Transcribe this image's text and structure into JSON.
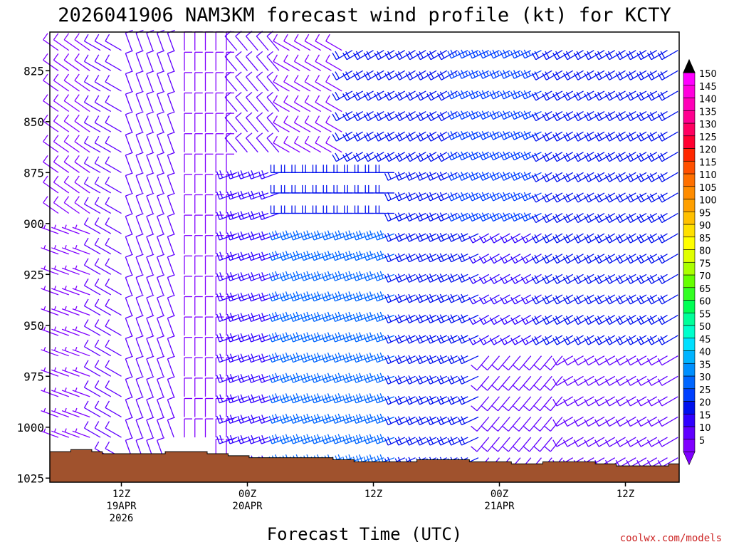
{
  "chart_data": {
    "type": "wind_barb_profile",
    "title": "2026041906 NAM3KM forecast wind profile (kt) for KCTY",
    "xlabel": "Forecast Time (UTC)",
    "ylabel": "",
    "units": "kt",
    "ylim": [
      1027,
      806
    ],
    "y_ticks": [
      825,
      850,
      875,
      900,
      925,
      950,
      975,
      1000,
      1025
    ],
    "y_tick_labels": [
      "825",
      "850",
      "875",
      "900",
      "925",
      "950",
      "975",
      "1000",
      "1025"
    ],
    "forecast_hours": 60,
    "x_ticks": [
      {
        "hour": 6,
        "labels": [
          "12Z",
          "19APR",
          "2026"
        ]
      },
      {
        "hour": 18,
        "labels": [
          "00Z",
          "20APR"
        ]
      },
      {
        "hour": 30,
        "labels": [
          "12Z"
        ]
      },
      {
        "hour": 42,
        "labels": [
          "00Z",
          "21APR"
        ]
      },
      {
        "hour": 54,
        "labels": [
          "12Z"
        ]
      }
    ],
    "levels_hpa": [
      815,
      825,
      835,
      845,
      855,
      865,
      875,
      885,
      895,
      905,
      915,
      925,
      935,
      945,
      955,
      965,
      975,
      985,
      995,
      1005,
      1015
    ],
    "surface_pressure_hpa": [
      1012,
      1012,
      1011,
      1011,
      1012,
      1013,
      1013,
      1013,
      1013,
      1013,
      1013,
      1012,
      1012,
      1012,
      1012,
      1013,
      1013,
      1014,
      1014,
      1015,
      1015,
      1015,
      1015,
      1015,
      1015,
      1015,
      1015,
      1016,
      1016,
      1017,
      1017,
      1017,
      1017,
      1017,
      1017,
      1016,
      1016,
      1016,
      1016,
      1016,
      1017,
      1017,
      1017,
      1017,
      1018,
      1018,
      1018,
      1017,
      1017,
      1017,
      1017,
      1017,
      1018,
      1018,
      1019,
      1019,
      1019,
      1019,
      1019,
      1018
    ],
    "barb_direction_note": "direction from which the wind blows, degrees",
    "colorbar": {
      "levels": [
        5,
        10,
        15,
        20,
        25,
        30,
        35,
        40,
        45,
        50,
        55,
        60,
        65,
        70,
        75,
        80,
        85,
        90,
        95,
        100,
        105,
        110,
        115,
        120,
        125,
        130,
        135,
        140,
        145,
        150
      ],
      "labels": [
        "5",
        "10",
        "15",
        "20",
        "25",
        "30",
        "35",
        "40",
        "45",
        "50",
        "55",
        "60",
        "65",
        "70",
        "75",
        "80",
        "85",
        "90",
        "95",
        "100",
        "105",
        "110",
        "115",
        "120",
        "125",
        "130",
        "135",
        "140",
        "145",
        "150"
      ],
      "colors": [
        "#8000ff",
        "#6000ff",
        "#3000ff",
        "#0010ee",
        "#0040ff",
        "#0066ff",
        "#0090ff",
        "#00b4ff",
        "#00e0ff",
        "#00ffcc",
        "#00ff99",
        "#00ff55",
        "#33ff22",
        "#66ff00",
        "#aaff00",
        "#e0ff00",
        "#ffff00",
        "#ffe000",
        "#ffc000",
        "#ffa000",
        "#ff8c00",
        "#ff7000",
        "#ff5000",
        "#ff2800",
        "#ff0030",
        "#ff0060",
        "#ff0090",
        "#ff00b8",
        "#ff00dd",
        "#ff00ff"
      ]
    },
    "terrain_color": "#a0522d",
    "winds": [
      {
        "from_hour": 0,
        "to_hour": 3,
        "pmin": 800,
        "pmax": 905,
        "dir": 305,
        "spd": 8
      },
      {
        "from_hour": 0,
        "to_hour": 3,
        "pmin": 905,
        "pmax": 1030,
        "dir": 290,
        "spd": 6
      },
      {
        "from_hour": 4,
        "to_hour": 6,
        "pmin": 800,
        "pmax": 1030,
        "dir": 300,
        "spd": 12
      },
      {
        "from_hour": 7,
        "to_hour": 11,
        "pmin": 800,
        "pmax": 1030,
        "dir": 340,
        "spd": 12
      },
      {
        "from_hour": 12,
        "to_hour": 16,
        "pmin": 800,
        "pmax": 1030,
        "dir": 0,
        "spd": 8
      },
      {
        "from_hour": 17,
        "to_hour": 21,
        "pmin": 800,
        "pmax": 870,
        "dir": 320,
        "spd": 10
      },
      {
        "from_hour": 22,
        "to_hour": 27,
        "pmin": 800,
        "pmax": 870,
        "dir": 300,
        "spd": 8
      },
      {
        "from_hour": 17,
        "to_hour": 21,
        "pmin": 870,
        "pmax": 1030,
        "dir": 250,
        "spd": 18
      },
      {
        "from_hour": 22,
        "to_hour": 32,
        "pmin": 870,
        "pmax": 900,
        "dir": 270,
        "spd": 22
      },
      {
        "from_hour": 22,
        "to_hour": 32,
        "pmin": 900,
        "pmax": 1030,
        "dir": 250,
        "spd": 30
      },
      {
        "from_hour": 28,
        "to_hour": 38,
        "pmin": 800,
        "pmax": 870,
        "dir": 240,
        "spd": 20
      },
      {
        "from_hour": 33,
        "to_hour": 40,
        "pmin": 870,
        "pmax": 1030,
        "dir": 245,
        "spd": 22
      },
      {
        "from_hour": 39,
        "to_hour": 46,
        "pmin": 800,
        "pmax": 900,
        "dir": 245,
        "spd": 26
      },
      {
        "from_hour": 41,
        "to_hour": 48,
        "pmin": 900,
        "pmax": 960,
        "dir": 240,
        "spd": 16
      },
      {
        "from_hour": 41,
        "to_hour": 48,
        "pmin": 960,
        "pmax": 1030,
        "dir": 220,
        "spd": 10
      },
      {
        "from_hour": 47,
        "to_hour": 59,
        "pmin": 800,
        "pmax": 960,
        "dir": 240,
        "spd": 20
      },
      {
        "from_hour": 49,
        "to_hour": 59,
        "pmin": 960,
        "pmax": 1030,
        "dir": 240,
        "spd": 12
      }
    ]
  },
  "watermark": "coolwx.com/models"
}
